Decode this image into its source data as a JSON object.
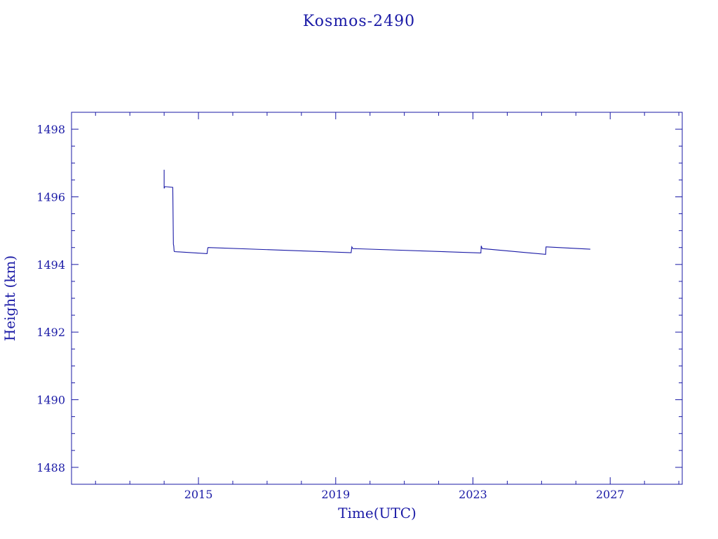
{
  "colors": {
    "ink": "#1a1aa6",
    "background": "#ffffff"
  },
  "chart_data": {
    "type": "line",
    "title": "Kosmos-2490",
    "xlabel": "Time(UTC)",
    "ylabel": "Height (km)",
    "xlim": [
      2011.3,
      2029.1
    ],
    "ylim": [
      1487.5,
      1498.5
    ],
    "x_ticks": [
      2015,
      2019,
      2023,
      2027
    ],
    "x_tick_labels": [
      "2015",
      "2019",
      "2023",
      "2027"
    ],
    "y_ticks": [
      1488,
      1490,
      1492,
      1494,
      1496,
      1498
    ],
    "y_tick_labels": [
      "1488",
      "1490",
      "1492",
      "1494",
      "1496",
      "1498"
    ],
    "grid": false,
    "legend": "none",
    "series": [
      {
        "color": "#1a1aa6",
        "x": [
          2014.0,
          2014.0,
          2014.02,
          2014.05,
          2014.25,
          2014.27,
          2014.28,
          2014.29,
          2014.3,
          2015.25,
          2015.27,
          2015.28,
          2019.45,
          2019.47,
          2019.5,
          2023.23,
          2023.24,
          2023.27,
          2025.12,
          2025.13,
          2025.15,
          2026.42
        ],
        "y": [
          1496.8,
          1496.25,
          1496.3,
          1496.3,
          1496.28,
          1494.6,
          1494.55,
          1494.4,
          1494.38,
          1494.32,
          1494.48,
          1494.5,
          1494.35,
          1494.52,
          1494.47,
          1494.34,
          1494.55,
          1494.47,
          1494.3,
          1494.52,
          1494.52,
          1494.45
        ]
      }
    ]
  }
}
